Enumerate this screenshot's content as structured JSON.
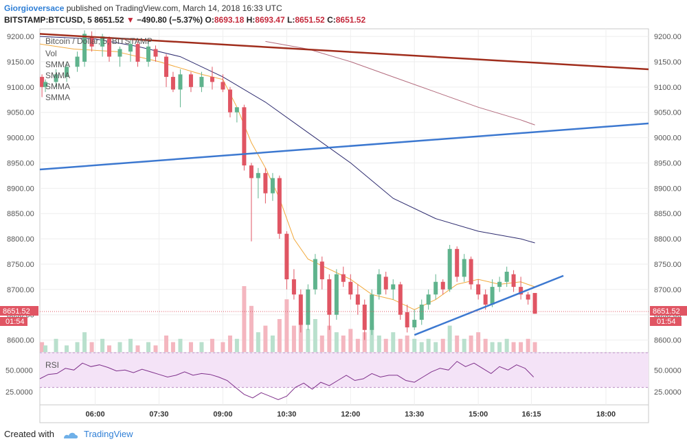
{
  "header": {
    "author": "Giorgioversace",
    "published_text": "published on TradingView.com, March 14, 2018 16:33 UTC",
    "symbol": "BITSTAMP:BTCUSD, 5",
    "last": "8651.52",
    "change": "−490.80 (−5.37%)",
    "o_label": "O:",
    "o": "8693.18",
    "h_label": "H:",
    "h": "8693.47",
    "l_label": "L:",
    "l": "8651.52",
    "c_label": "C:",
    "c": "8651.52"
  },
  "chart_title": "Bitcoin / Dollar, 5, BITSTAMP",
  "indicator_labels": [
    "Vol",
    "SMMA",
    "SMMA",
    "SMMA",
    "SMMA"
  ],
  "rsi_label": "RSI",
  "price_tag": "8651.52",
  "countdown": "01:54",
  "footer": {
    "created_with": "Created with",
    "brand": "TradingView"
  },
  "colors": {
    "up": "#5fb38d",
    "down": "#e05563",
    "vol_up": "#b9e0cd",
    "vol_down": "#f4b6bf",
    "trend_red": "#a02d1c",
    "trend_blue": "#3c78d0",
    "smma_fast": "#f2a93b",
    "smma_mid": "#2c2a6e",
    "smma_slow": "#b26a7c",
    "rsi_line": "#7e2f8a",
    "rsi_bg": "#f4e3f7"
  },
  "chart_data": [
    {
      "type": "candlestick",
      "title": "Bitcoin / Dollar, 5, BITSTAMP",
      "y_ticks": [
        8600,
        8650,
        8700,
        8750,
        8800,
        8850,
        8900,
        8950,
        9000,
        9050,
        9100,
        9150,
        9200
      ],
      "y_tick_labels": [
        "8600.00",
        "8650.00",
        "8700.00",
        "8750.00",
        "8800.00",
        "8850.00",
        "8900.00",
        "8950.00",
        "9000.00",
        "9050.00",
        "9100.00",
        "9150.00",
        "9200.00"
      ],
      "ylim": [
        8575,
        9215
      ],
      "x_tick_labels": [
        "06:00",
        "07:30",
        "09:00",
        "10:30",
        "12:00",
        "13:30",
        "15:00",
        "16:15",
        "18:00"
      ],
      "x_tick_hours": [
        6.0,
        7.5,
        9.0,
        10.5,
        12.0,
        13.5,
        15.0,
        16.25,
        18.0
      ],
      "xlim_hours": [
        4.7,
        19.0
      ],
      "candles": [
        {
          "t": 4.75,
          "o": 9120,
          "h": 9125,
          "c": 9100,
          "l": 9080
        },
        {
          "t": 4.83,
          "o": 9100,
          "h": 9115,
          "c": 9110,
          "l": 9090
        },
        {
          "t": 5.08,
          "o": 9110,
          "h": 9135,
          "c": 9125,
          "l": 9100
        },
        {
          "t": 5.33,
          "o": 9120,
          "h": 9150,
          "c": 9140,
          "l": 9110
        },
        {
          "t": 5.58,
          "o": 9140,
          "h": 9170,
          "c": 9160,
          "l": 9130
        },
        {
          "t": 5.75,
          "o": 9150,
          "h": 9212,
          "c": 9205,
          "l": 9140
        },
        {
          "t": 5.92,
          "o": 9200,
          "h": 9210,
          "c": 9180,
          "l": 9170
        },
        {
          "t": 6.17,
          "o": 9180,
          "h": 9205,
          "c": 9200,
          "l": 9160
        },
        {
          "t": 6.33,
          "o": 9195,
          "h": 9200,
          "c": 9160,
          "l": 9150
        },
        {
          "t": 6.58,
          "o": 9160,
          "h": 9180,
          "c": 9175,
          "l": 9140
        },
        {
          "t": 6.83,
          "o": 9170,
          "h": 9195,
          "c": 9185,
          "l": 9150
        },
        {
          "t": 7.0,
          "o": 9185,
          "h": 9190,
          "c": 9150,
          "l": 9140
        },
        {
          "t": 7.25,
          "o": 9150,
          "h": 9190,
          "c": 9180,
          "l": 9140
        },
        {
          "t": 7.42,
          "o": 9175,
          "h": 9182,
          "c": 9160,
          "l": 9150
        },
        {
          "t": 7.67,
          "o": 9160,
          "h": 9165,
          "c": 9120,
          "l": 9100
        },
        {
          "t": 7.83,
          "o": 9120,
          "h": 9130,
          "c": 9095,
          "l": 9090
        },
        {
          "t": 8.0,
          "o": 9095,
          "h": 9135,
          "c": 9125,
          "l": 9060
        },
        {
          "t": 8.25,
          "o": 9125,
          "h": 9130,
          "c": 9100,
          "l": 9090
        },
        {
          "t": 8.5,
          "o": 9100,
          "h": 9130,
          "c": 9120,
          "l": 9090
        },
        {
          "t": 8.75,
          "o": 9120,
          "h": 9140,
          "c": 9110,
          "l": 9095
        },
        {
          "t": 9.0,
          "o": 9110,
          "h": 9125,
          "c": 9095,
          "l": 9090
        },
        {
          "t": 9.17,
          "o": 9095,
          "h": 9100,
          "c": 9050,
          "l": 9040
        },
        {
          "t": 9.33,
          "o": 9050,
          "h": 9060,
          "c": 9060,
          "l": 9030
        },
        {
          "t": 9.5,
          "o": 9060,
          "h": 9065,
          "c": 8945,
          "l": 8935
        },
        {
          "t": 9.67,
          "o": 8945,
          "h": 8950,
          "c": 8920,
          "l": 8795
        },
        {
          "t": 9.83,
          "o": 8920,
          "h": 8940,
          "c": 8930,
          "l": 8880
        },
        {
          "t": 10.0,
          "o": 8930,
          "h": 8940,
          "c": 8890,
          "l": 8870
        },
        {
          "t": 10.17,
          "o": 8890,
          "h": 8930,
          "c": 8920,
          "l": 8875
        },
        {
          "t": 10.33,
          "o": 8920,
          "h": 8925,
          "c": 8810,
          "l": 8800
        },
        {
          "t": 10.5,
          "o": 8810,
          "h": 8815,
          "c": 8720,
          "l": 8700
        },
        {
          "t": 10.67,
          "o": 8720,
          "h": 8740,
          "c": 8690,
          "l": 8680
        },
        {
          "t": 10.83,
          "o": 8690,
          "h": 8700,
          "c": 8630,
          "l": 8615
        },
        {
          "t": 11.0,
          "o": 8630,
          "h": 8710,
          "c": 8700,
          "l": 8620
        },
        {
          "t": 11.17,
          "o": 8700,
          "h": 8770,
          "c": 8760,
          "l": 8690
        },
        {
          "t": 11.33,
          "o": 8755,
          "h": 8765,
          "c": 8720,
          "l": 8700
        },
        {
          "t": 11.5,
          "o": 8720,
          "h": 8730,
          "c": 8650,
          "l": 8620
        },
        {
          "t": 11.67,
          "o": 8650,
          "h": 8740,
          "c": 8730,
          "l": 8640
        },
        {
          "t": 11.83,
          "o": 8730,
          "h": 8745,
          "c": 8715,
          "l": 8705
        },
        {
          "t": 12.0,
          "o": 8715,
          "h": 8730,
          "c": 8690,
          "l": 8680
        },
        {
          "t": 12.17,
          "o": 8690,
          "h": 8710,
          "c": 8670,
          "l": 8650
        },
        {
          "t": 12.33,
          "o": 8670,
          "h": 8680,
          "c": 8620,
          "l": 8600
        },
        {
          "t": 12.5,
          "o": 8620,
          "h": 8700,
          "c": 8690,
          "l": 8610
        },
        {
          "t": 12.67,
          "o": 8690,
          "h": 8740,
          "c": 8730,
          "l": 8680
        },
        {
          "t": 12.83,
          "o": 8725,
          "h": 8735,
          "c": 8700,
          "l": 8690
        },
        {
          "t": 13.0,
          "o": 8700,
          "h": 8720,
          "c": 8710,
          "l": 8680
        },
        {
          "t": 13.17,
          "o": 8710,
          "h": 8715,
          "c": 8650,
          "l": 8640
        },
        {
          "t": 13.33,
          "o": 8655,
          "h": 8670,
          "c": 8625,
          "l": 8615
        },
        {
          "t": 13.5,
          "o": 8625,
          "h": 8660,
          "c": 8640,
          "l": 8620
        },
        {
          "t": 13.67,
          "o": 8640,
          "h": 8680,
          "c": 8670,
          "l": 8630
        },
        {
          "t": 13.83,
          "o": 8670,
          "h": 8700,
          "c": 8690,
          "l": 8660
        },
        {
          "t": 14.0,
          "o": 8690,
          "h": 8730,
          "c": 8715,
          "l": 8680
        },
        {
          "t": 14.17,
          "o": 8715,
          "h": 8720,
          "c": 8700,
          "l": 8690
        },
        {
          "t": 14.33,
          "o": 8700,
          "h": 8788,
          "c": 8780,
          "l": 8695
        },
        {
          "t": 14.5,
          "o": 8780,
          "h": 8785,
          "c": 8725,
          "l": 8715
        },
        {
          "t": 14.67,
          "o": 8725,
          "h": 8770,
          "c": 8760,
          "l": 8715
        },
        {
          "t": 14.83,
          "o": 8760,
          "h": 8765,
          "c": 8710,
          "l": 8700
        },
        {
          "t": 15.0,
          "o": 8710,
          "h": 8720,
          "c": 8690,
          "l": 8680
        },
        {
          "t": 15.17,
          "o": 8690,
          "h": 8700,
          "c": 8670,
          "l": 8660
        },
        {
          "t": 15.33,
          "o": 8670,
          "h": 8720,
          "c": 8705,
          "l": 8665
        },
        {
          "t": 15.5,
          "o": 8705,
          "h": 8725,
          "c": 8715,
          "l": 8695
        },
        {
          "t": 15.67,
          "o": 8715,
          "h": 8745,
          "c": 8735,
          "l": 8705
        },
        {
          "t": 15.83,
          "o": 8730,
          "h": 8738,
          "c": 8705,
          "l": 8695
        },
        {
          "t": 16.0,
          "o": 8705,
          "h": 8725,
          "c": 8690,
          "l": 8680
        },
        {
          "t": 16.17,
          "o": 8690,
          "h": 8695,
          "c": 8680,
          "l": 8670
        },
        {
          "t": 16.33,
          "o": 8693,
          "h": 8693,
          "c": 8652,
          "l": 8652
        }
      ],
      "volume": [
        3,
        2,
        4,
        2,
        3,
        6,
        3,
        4,
        2,
        3,
        4,
        2,
        3,
        2,
        5,
        3,
        4,
        3,
        3,
        4,
        3,
        5,
        4,
        20,
        14,
        6,
        8,
        5,
        10,
        16,
        8,
        11,
        7,
        10,
        5,
        8,
        6,
        5,
        7,
        4,
        6,
        8,
        5,
        4,
        6,
        4,
        5,
        4,
        3,
        4,
        3,
        4,
        8,
        5,
        4,
        5,
        6,
        4,
        3,
        3,
        4,
        3,
        3,
        4,
        3
      ],
      "series": [
        {
          "name": "SMMA",
          "points": [
            [
              4.7,
              9185
            ],
            [
              5.5,
              9175
            ],
            [
              6.5,
              9170
            ],
            [
              7.5,
              9150
            ],
            [
              8.5,
              9125
            ],
            [
              9.0,
              9115
            ],
            [
              9.33,
              9060
            ],
            [
              9.67,
              8990
            ],
            [
              10.0,
              8940
            ],
            [
              10.33,
              8880
            ],
            [
              10.67,
              8800
            ],
            [
              11.0,
              8760
            ],
            [
              11.5,
              8740
            ],
            [
              12.0,
              8720
            ],
            [
              12.5,
              8690
            ],
            [
              13.0,
              8680
            ],
            [
              13.5,
              8660
            ],
            [
              14.0,
              8680
            ],
            [
              14.5,
              8710
            ],
            [
              15.0,
              8720
            ],
            [
              15.5,
              8710
            ],
            [
              16.0,
              8715
            ],
            [
              16.33,
              8705
            ]
          ]
        },
        {
          "name": "SMMA",
          "points": [
            [
              4.7,
              9200
            ],
            [
              6.0,
              9195
            ],
            [
              7.0,
              9180
            ],
            [
              8.0,
              9160
            ],
            [
              9.0,
              9120
            ],
            [
              10.0,
              9070
            ],
            [
              11.0,
              9010
            ],
            [
              12.0,
              8950
            ],
            [
              13.0,
              8880
            ],
            [
              14.0,
              8840
            ],
            [
              15.0,
              8815
            ],
            [
              16.0,
              8800
            ],
            [
              16.33,
              8792
            ]
          ]
        },
        {
          "name": "SMMA",
          "points": [
            [
              10.0,
              9190
            ],
            [
              11.0,
              9175
            ],
            [
              12.0,
              9150
            ],
            [
              13.0,
              9120
            ],
            [
              14.0,
              9090
            ],
            [
              15.0,
              9060
            ],
            [
              16.0,
              9035
            ],
            [
              16.33,
              9025
            ]
          ]
        }
      ],
      "trendlines": [
        {
          "from": [
            4.7,
            9205
          ],
          "to": [
            19.0,
            9135
          ]
        },
        {
          "from": [
            4.7,
            8937
          ],
          "to": [
            19.0,
            9028
          ]
        },
        {
          "from": [
            13.5,
            8610
          ],
          "to": [
            17.0,
            8727
          ]
        }
      ]
    },
    {
      "type": "line",
      "title": "RSI",
      "y_tick_labels": [
        "50.0000",
        "25.0000"
      ],
      "y_ticks": [
        50,
        25
      ],
      "ylim": [
        10,
        70
      ],
      "band": [
        30,
        70
      ],
      "x_hours": [
        4.7,
        4.9,
        5.1,
        5.3,
        5.5,
        5.7,
        5.9,
        6.1,
        6.3,
        6.5,
        6.7,
        6.9,
        7.1,
        7.3,
        7.5,
        7.7,
        7.9,
        8.1,
        8.3,
        8.5,
        8.7,
        8.9,
        9.1,
        9.3,
        9.5,
        9.7,
        9.9,
        10.1,
        10.3,
        10.5,
        10.7,
        10.9,
        11.1,
        11.3,
        11.5,
        11.7,
        11.9,
        12.1,
        12.3,
        12.5,
        12.7,
        12.9,
        13.1,
        13.3,
        13.5,
        13.7,
        13.9,
        14.1,
        14.3,
        14.5,
        14.7,
        14.9,
        15.1,
        15.3,
        15.5,
        15.7,
        15.9,
        16.1,
        16.3
      ],
      "values": [
        40,
        45,
        46,
        52,
        50,
        58,
        54,
        56,
        53,
        49,
        50,
        47,
        51,
        48,
        45,
        42,
        44,
        48,
        44,
        46,
        45,
        42,
        38,
        30,
        22,
        18,
        24,
        20,
        16,
        20,
        30,
        35,
        28,
        36,
        32,
        38,
        44,
        38,
        40,
        46,
        42,
        44,
        44,
        38,
        36,
        42,
        48,
        52,
        50,
        60,
        54,
        58,
        52,
        46,
        54,
        50,
        56,
        52,
        42
      ]
    }
  ]
}
